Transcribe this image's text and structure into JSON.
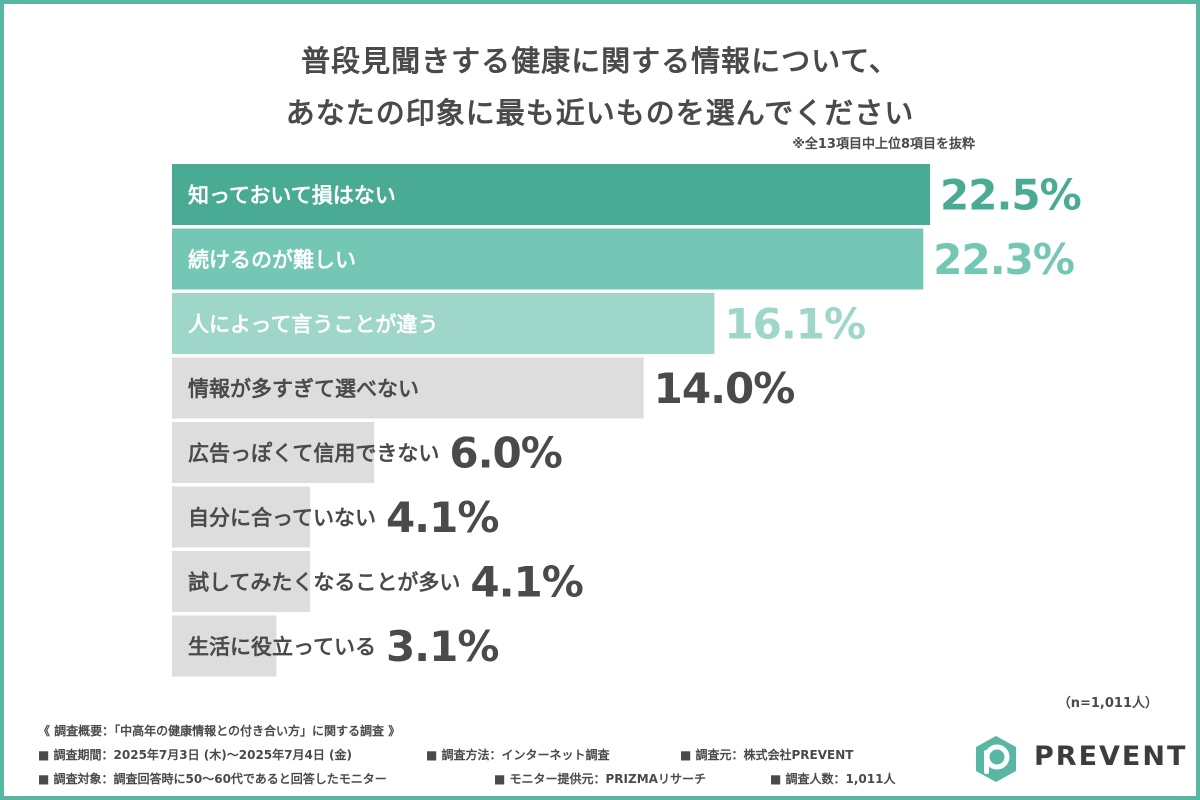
{
  "title_line1": "普段見聞きする健康に関する情報について、",
  "title_line2": "あなたの印象に最も近いものを選んでください",
  "note": "※全13項目中上位8項目を抜粋",
  "chart_data": {
    "type": "bar",
    "orientation": "horizontal",
    "categories": [
      "知っておいて損はない",
      "続けるのが難しい",
      "人によって言うことが違う",
      "情報が多すぎて選べない",
      "広告っぽくて信用できない",
      "自分に合っていない",
      "試してみたくなることが多い",
      "生活に役立っている"
    ],
    "values": [
      22.5,
      22.3,
      16.1,
      14.0,
      6.0,
      4.1,
      4.1,
      3.1
    ],
    "value_labels": [
      "22.5%",
      "22.3%",
      "16.1%",
      "14.0%",
      "6.0%",
      "4.1%",
      "4.1%",
      "3.1%"
    ],
    "bar_colors": [
      "#4aab94",
      "#73c7b4",
      "#9ed6c9",
      "#dddddd",
      "#dddddd",
      "#dddddd",
      "#dddddd",
      "#dddddd"
    ],
    "label_colors": [
      "#ffffff",
      "#ffffff",
      "#ffffff",
      "#4a4a4a",
      "#4a4a4a",
      "#4a4a4a",
      "#4a4a4a",
      "#4a4a4a"
    ],
    "value_colors": [
      "#4aab94",
      "#73c7b4",
      "#9ed6c9",
      "#4a4a4a",
      "#4a4a4a",
      "#4a4a4a",
      "#4a4a4a",
      "#4a4a4a"
    ],
    "xlim": [
      0,
      22.5
    ],
    "grid": false,
    "legend": "none"
  },
  "n_note": "（n=1,011人）",
  "survey": {
    "heading": "《 調査概要：「中高年の健康情報との付き合い方」に関する調査 》",
    "period": "■ 調査期間：2025年7月3日 (木)〜2025年7月4日 (金)",
    "method": "■ 調査方法：インターネット調査",
    "organizer": "■ 調査元：株式会社PREVENT",
    "target": "■ 調査対象：調査回答時に50〜60代であると回答したモニター",
    "provider": "■ モニター提供元：PRIZMAリサーチ",
    "count": "■ 調査人数：1,011人"
  },
  "logo": {
    "text": "PREVENT",
    "mark_letter": "p",
    "mark_color": "#58b7a3"
  }
}
